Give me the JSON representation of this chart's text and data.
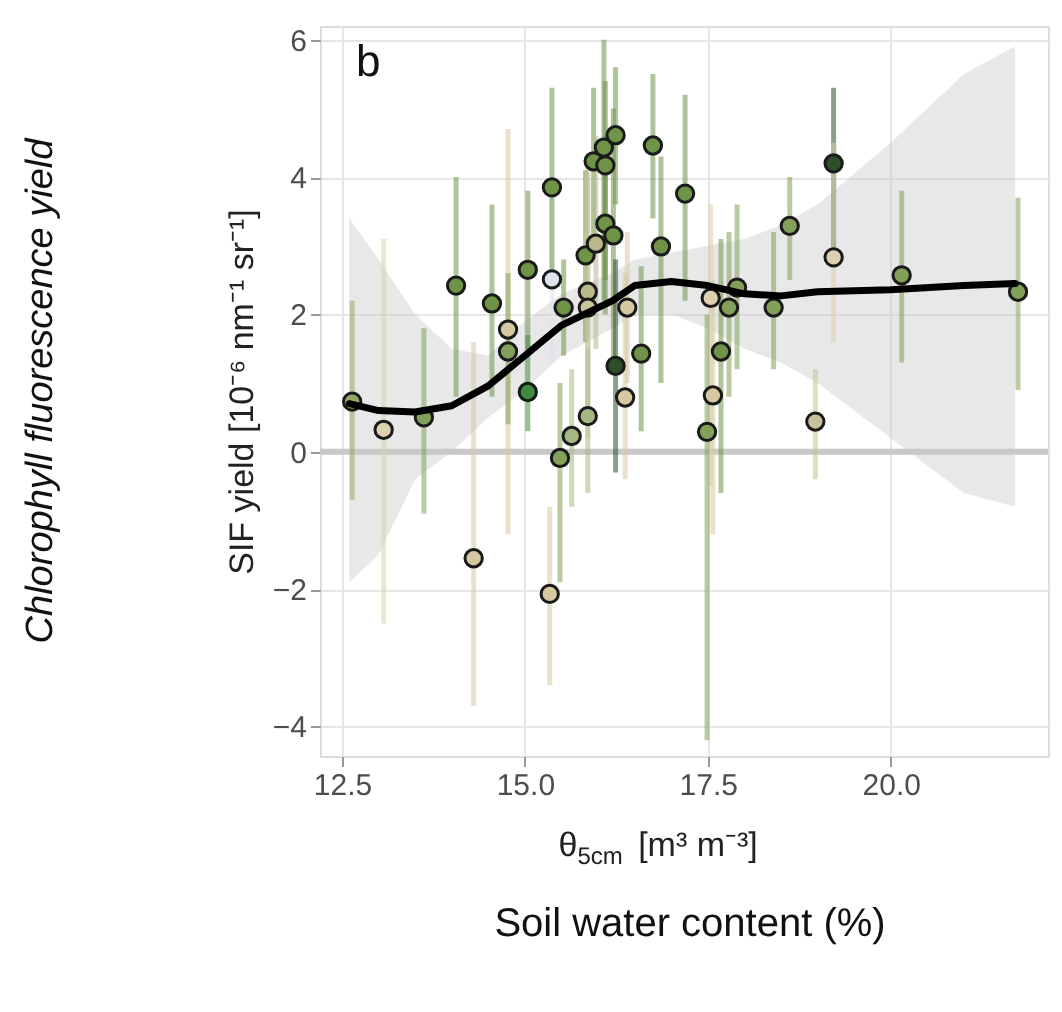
{
  "chart_data": {
    "type": "scatter",
    "xlabel": "θ$_{5cm}$ [m³ m⁻³]",
    "ylabel": "SIF yield [10⁻⁶ nm⁻¹ sr⁻¹]",
    "annotations": [
      "b",
      "Chlorophyll fluorescence yield",
      "Soil water content (%)"
    ],
    "xlim": [
      12.2,
      22.15
    ],
    "xticks": [
      {
        "value": 12.5,
        "label": "12.5"
      },
      {
        "value": 15,
        "label": "15.0"
      },
      {
        "value": 17.5,
        "label": "17.5"
      },
      {
        "value": 20,
        "label": "20.0"
      }
    ],
    "ylim": [
      -4.43,
      6.2
    ],
    "yticks": [
      -4,
      -2,
      0,
      2,
      4,
      6
    ],
    "grid": true,
    "ref_lines": [
      {
        "axis": "y",
        "value": 0,
        "color": "#c8c8c8"
      }
    ],
    "series": [
      {
        "marker": "circle",
        "x": [
          12.64,
          13.07,
          13.62,
          14.06,
          14.3,
          14.55,
          14.77,
          14.77,
          15.04,
          15.04,
          15.37,
          15.34,
          15.37,
          15.53,
          15.48,
          15.64,
          15.86,
          15.83,
          15.86,
          15.86,
          15.94,
          16.08,
          16.24,
          16.1,
          16.1,
          15.97,
          16.21,
          16.4,
          16.24,
          16.59,
          16.37,
          16.75,
          17.19,
          16.86,
          17.54,
          17.79,
          17.9,
          17.68,
          17.57,
          17.49,
          18.4,
          18.62,
          19.22,
          19.22,
          18.97,
          20.15,
          21.74
        ],
        "values": [
          0.73,
          0.32,
          0.5,
          2.42,
          -1.55,
          2.16,
          1.78,
          1.46,
          2.65,
          0.87,
          2.51,
          -2.07,
          3.85,
          2.1,
          -0.09,
          0.23,
          0.52,
          2.86,
          2.33,
          2.1,
          4.23,
          4.43,
          4.61,
          4.17,
          3.32,
          3.03,
          3.15,
          2.1,
          1.25,
          1.43,
          0.79,
          4.46,
          3.76,
          2.99,
          2.24,
          2.1,
          2.39,
          1.46,
          0.82,
          0.29,
          2.1,
          3.29,
          4.2,
          2.83,
          0.44,
          2.57,
          2.33
        ],
        "errors": [
          [
            -0.7,
            2.2
          ],
          [
            -2.5,
            3.1
          ],
          [
            -0.9,
            1.8
          ],
          [
            0.8,
            4.0
          ],
          [
            -3.7,
            1.6
          ],
          [
            0.8,
            3.6
          ],
          [
            -1.2,
            4.7
          ],
          [
            0.4,
            2.6
          ],
          [
            1.5,
            3.8
          ],
          [
            0.3,
            1.7
          ],
          [
            1.3,
            3.7
          ],
          [
            -3.4,
            -0.8
          ],
          [
            2.5,
            5.3
          ],
          [
            1.4,
            2.8
          ],
          [
            -1.9,
            1.0
          ],
          [
            -0.8,
            1.2
          ],
          [
            -0.6,
            1.5
          ],
          [
            1.6,
            4.1
          ],
          [
            0.4,
            4.2
          ],
          [
            0.2,
            4.0
          ],
          [
            3.1,
            5.3
          ],
          [
            2.2,
            6.0
          ],
          [
            3.6,
            5.6
          ],
          [
            2.5,
            5.4
          ],
          [
            2.0,
            4.6
          ],
          [
            1.5,
            4.6
          ],
          [
            1.3,
            5.0
          ],
          [
            1.0,
            3.2
          ],
          [
            -0.3,
            2.8
          ],
          [
            0.3,
            2.7
          ],
          [
            -0.4,
            2.6
          ],
          [
            3.4,
            5.5
          ],
          [
            2.2,
            5.2
          ],
          [
            1.0,
            4.3
          ],
          [
            -0.5,
            3.6
          ],
          [
            0.8,
            3.2
          ],
          [
            1.2,
            3.6
          ],
          [
            -0.6,
            3.1
          ],
          [
            -1.2,
            2.5
          ],
          [
            -4.2,
            2.0
          ],
          [
            1.2,
            3.2
          ],
          [
            2.5,
            4.0
          ],
          [
            2.9,
            5.3
          ],
          [
            1.6,
            4.5
          ],
          [
            -0.4,
            1.2
          ],
          [
            1.3,
            3.8
          ],
          [
            0.9,
            3.7
          ]
        ],
        "colors": [
          "#93a866",
          "#ddd0b0",
          "#82a05a",
          "#6f9448",
          "#d6c8a0",
          "#6f9448",
          "#d6c8a0",
          "#82a05a",
          "#6f9448",
          "#3f8a3f",
          "#dde4ee",
          "#d6c8a0",
          "#6f9448",
          "#6f9448",
          "#82a05a",
          "#a5b884",
          "#a5b884",
          "#6f9448",
          "#b8bb8c",
          "#c8c49c",
          "#6f9448",
          "#6f9448",
          "#6f9448",
          "#6f9448",
          "#6f9448",
          "#b8b88a",
          "#6f9448",
          "#d6c8a0",
          "#2f4f2a",
          "#6f9448",
          "#d6c8a0",
          "#6f9448",
          "#6f9448",
          "#6f9448",
          "#ddd0b0",
          "#82a05a",
          "#82a05a",
          "#6f9448",
          "#d6c8a0",
          "#82a05a",
          "#82a05a",
          "#82a05a",
          "#2f4f2a",
          "#ddd0b0",
          "#c8c09a",
          "#82a05a",
          "#82a05a"
        ]
      },
      {
        "type": "line",
        "color": "#000000",
        "line_style": "solid",
        "x": [
          12.6,
          13,
          13.5,
          14,
          14.5,
          15,
          15.5,
          16.2,
          16.5,
          17,
          17.5,
          18,
          18.5,
          19,
          20,
          21,
          21.7
        ],
        "values": [
          0.7,
          0.6,
          0.58,
          0.67,
          0.96,
          1.4,
          1.84,
          2.2,
          2.42,
          2.48,
          2.42,
          2.3,
          2.27,
          2.33,
          2.36,
          2.42,
          2.45
        ],
        "lower": [
          -1.9,
          -1.5,
          -0.4,
          0,
          0.5,
          0.9,
          1.4,
          1.8,
          2.0,
          2.0,
          1.8,
          1.5,
          1.3,
          1.0,
          0.2,
          -0.6,
          -0.8
        ],
        "upper": [
          3.4,
          2.8,
          2.0,
          1.5,
          1.4,
          1.9,
          2.3,
          2.6,
          2.8,
          2.9,
          3.0,
          3.1,
          3.3,
          3.6,
          4.5,
          5.5,
          5.9
        ]
      }
    ]
  }
}
